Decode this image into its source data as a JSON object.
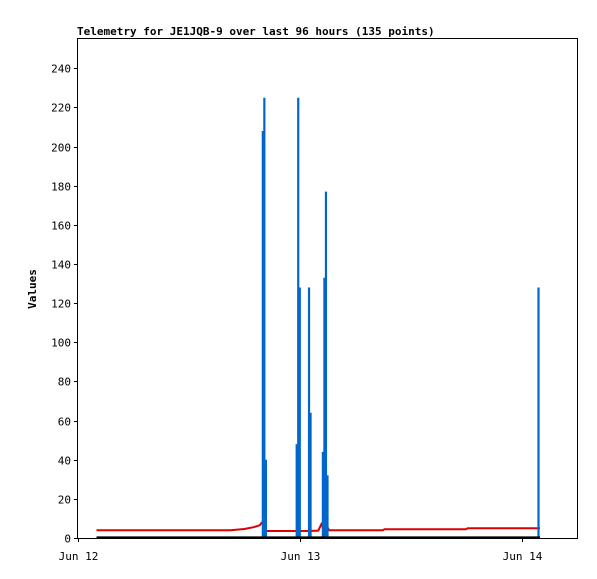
{
  "chart_data": {
    "type": "line",
    "title": "Telemetry for JE1JQB-9 over last 96 hours (135 points)",
    "xlabel": "",
    "ylabel": "Values",
    "ylim": [
      0,
      255
    ],
    "xlim": [
      "2025-06-12 00:00",
      "2025-06-14 06:00"
    ],
    "yticks": [
      0,
      20,
      40,
      60,
      80,
      100,
      120,
      140,
      160,
      180,
      200,
      220,
      240
    ],
    "xticks": [
      {
        "label": "Jun 12",
        "t": "2025-06-12 00:00"
      },
      {
        "label": "Jun 13",
        "t": "2025-06-13 00:00"
      },
      {
        "label": "Jun 14",
        "t": "2025-06-14 00:00"
      }
    ],
    "grid": false,
    "legend": "none",
    "colors": {
      "series_red": "#dd0000",
      "series_blue": "#0066cc",
      "series_black": "#000000"
    },
    "series": [
      {
        "color": "#dd0000",
        "style": "line",
        "points": [
          [
            "2025-06-12 02:00",
            4
          ],
          [
            "2025-06-12 16:30",
            4
          ],
          [
            "2025-06-12 18:00",
            4.6
          ],
          [
            "2025-06-12 19:00",
            5.5
          ],
          [
            "2025-06-12 19:40",
            6.5
          ],
          [
            "2025-06-12 20:00",
            8.5
          ],
          [
            "2025-06-12 20:10",
            3.6
          ],
          [
            "2025-06-13 01:00",
            3.6
          ],
          [
            "2025-06-13 02:00",
            3.8
          ],
          [
            "2025-06-13 02:20",
            7
          ],
          [
            "2025-06-13 02:30",
            5.2
          ],
          [
            "2025-06-13 03:00",
            5.5
          ],
          [
            "2025-06-13 03:10",
            4
          ],
          [
            "2025-06-13 09:00",
            4
          ],
          [
            "2025-06-13 09:10",
            4.5
          ],
          [
            "2025-06-13 18:00",
            4.5
          ],
          [
            "2025-06-13 18:10",
            5
          ],
          [
            "2025-06-14 02:00",
            5
          ]
        ]
      },
      {
        "color": "#0066cc",
        "style": "spikes",
        "points": [
          [
            "2025-06-12 20:00",
            208
          ],
          [
            "2025-06-12 20:10",
            225
          ],
          [
            "2025-06-12 20:20",
            40
          ],
          [
            "2025-06-12 23:40",
            48
          ],
          [
            "2025-06-12 23:50",
            225
          ],
          [
            "2025-06-13 00:00",
            128
          ],
          [
            "2025-06-13 01:00",
            128
          ],
          [
            "2025-06-13 01:10",
            64
          ],
          [
            "2025-06-13 02:30",
            44
          ],
          [
            "2025-06-13 02:40",
            133
          ],
          [
            "2025-06-13 02:50",
            177
          ],
          [
            "2025-06-13 03:00",
            32
          ],
          [
            "2025-06-14 01:50",
            128
          ]
        ]
      },
      {
        "color": "#000000",
        "style": "line",
        "points": [
          [
            "2025-06-12 02:00",
            0.3
          ],
          [
            "2025-06-14 02:00",
            0.3
          ]
        ]
      }
    ]
  }
}
